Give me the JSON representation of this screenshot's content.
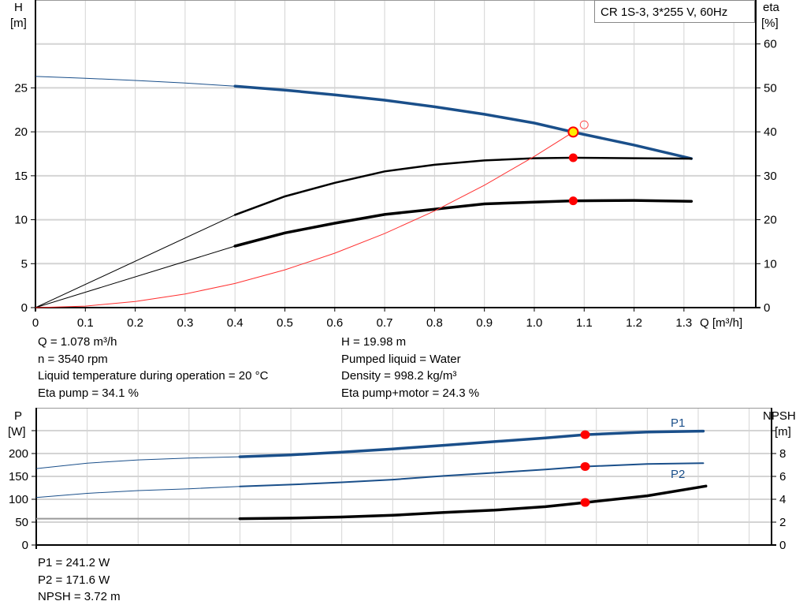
{
  "colors": {
    "head": "#1a4f8a",
    "power": "#1a4f8a",
    "efficiency": "#000000",
    "npsh": "#000000",
    "system": "#ff3030",
    "duty_point": "#ff0000",
    "duty_point_fill": "#ffee00",
    "grid": "#d4d4d4"
  },
  "chart_data": [
    {
      "type": "line",
      "title": "CR 1S-3, 3*255 V, 60Hz",
      "xlabel": "Q [m³/h]",
      "ylabel_left": [
        "H",
        "[m]"
      ],
      "ylabel_right": [
        "eta",
        "[%]"
      ],
      "xlim": [
        0,
        1.444
      ],
      "ylim_left": [
        0,
        35
      ],
      "ylim_right": [
        0,
        70
      ],
      "x_ticks": [
        "0",
        "0.1",
        "0.2",
        "0.3",
        "0.4",
        "0.5",
        "0.6",
        "0.7",
        "0.8",
        "0.9",
        "1.0",
        "1.1",
        "1.2",
        "1.3"
      ],
      "y_ticks_left": [
        "0",
        "5",
        "10",
        "15",
        "20",
        "25"
      ],
      "y_ticks_right": [
        "0",
        "10",
        "20",
        "30",
        "40",
        "50",
        "60"
      ],
      "grid": true,
      "series": [
        {
          "key": "head",
          "axis": "left",
          "color": "#1a4f8a",
          "x": [
            0,
            0.1,
            0.2,
            0.3,
            0.4,
            0.5,
            0.6,
            0.7,
            0.8,
            0.9,
            1.0,
            1.078,
            1.1,
            1.2,
            1.315
          ],
          "y": [
            26.3,
            26.1,
            25.85,
            25.55,
            25.2,
            24.75,
            24.2,
            23.6,
            22.85,
            22.0,
            21.0,
            19.98,
            19.7,
            18.5,
            16.95
          ],
          "thin_until": 0.4
        },
        {
          "key": "eta_pump",
          "axis": "right",
          "color": "#000000",
          "x": [
            0,
            0.4,
            0.5,
            0.6,
            0.7,
            0.8,
            0.9,
            1.0,
            1.078,
            1.2,
            1.315
          ],
          "y": [
            0,
            21.1,
            25.3,
            28.4,
            31.0,
            32.5,
            33.5,
            34.0,
            34.1,
            34.0,
            33.9
          ],
          "thin_until": 0.4
        },
        {
          "key": "eta_total",
          "axis": "right",
          "color": "#000000",
          "x": [
            0,
            0.4,
            0.5,
            0.6,
            0.7,
            0.8,
            0.9,
            1.0,
            1.078,
            1.2,
            1.315
          ],
          "y": [
            0,
            14.0,
            17.0,
            19.2,
            21.2,
            22.4,
            23.6,
            24.0,
            24.3,
            24.4,
            24.2
          ],
          "thin_until": 0.4
        },
        {
          "key": "system",
          "axis": "left",
          "color": "#ff3030",
          "x": [
            0,
            0.1,
            0.2,
            0.3,
            0.4,
            0.5,
            0.6,
            0.7,
            0.8,
            0.9,
            1.0,
            1.078
          ],
          "y": [
            0,
            0.17,
            0.69,
            1.55,
            2.75,
            4.3,
            6.19,
            8.43,
            11.0,
            13.93,
            17.2,
            19.98
          ]
        }
      ],
      "duty_points": [
        {
          "x": 1.078,
          "y": 19.98,
          "axis": "left",
          "style": "yellow"
        },
        {
          "x": 1.078,
          "y": 34.1,
          "axis": "right",
          "style": "red"
        },
        {
          "x": 1.078,
          "y": 24.3,
          "axis": "right",
          "style": "red"
        },
        {
          "x": 1.1,
          "y": 20.8,
          "axis": "left",
          "style": "hollow"
        }
      ]
    },
    {
      "type": "line",
      "xlabel": "",
      "ylabel_left": [
        "P",
        "[W]"
      ],
      "ylabel_right": [
        "NPSH",
        "[m]"
      ],
      "xlim": [
        0,
        1.444
      ],
      "ylim_left": [
        0,
        300
      ],
      "ylim_right": [
        0,
        12
      ],
      "y_ticks_left": [
        "0",
        "50",
        "100",
        "150",
        "200",
        ""
      ],
      "y_ticks_right": [
        "0",
        "2",
        "4",
        "6",
        "8",
        ""
      ],
      "grid": true,
      "series": [
        {
          "key": "P1",
          "name": "P1",
          "axis": "left",
          "color": "#1a4f8a",
          "x": [
            0,
            0.1,
            0.2,
            0.3,
            0.4,
            0.5,
            0.6,
            0.7,
            0.8,
            0.9,
            1.0,
            1.078,
            1.2,
            1.31
          ],
          "y": [
            167,
            179,
            186,
            190,
            193,
            197,
            203,
            210,
            218,
            226,
            234,
            241.2,
            247,
            249
          ],
          "thin_until": 0.4
        },
        {
          "key": "P2",
          "name": "P2",
          "axis": "left",
          "color": "#1a4f8a",
          "x": [
            0,
            0.1,
            0.2,
            0.3,
            0.4,
            0.5,
            0.6,
            0.7,
            0.8,
            0.9,
            1.0,
            1.078,
            1.2,
            1.31
          ],
          "y": [
            104,
            113,
            119,
            123,
            128,
            132,
            137,
            143,
            151,
            158,
            165,
            171.6,
            177,
            179
          ],
          "thin_until": 0.4
        },
        {
          "key": "NPSH",
          "axis": "right",
          "color": "#000000",
          "x": [
            0,
            0.4,
            0.5,
            0.6,
            0.7,
            0.8,
            0.9,
            1.0,
            1.078,
            1.2,
            1.315
          ],
          "y": [
            2.3,
            2.3,
            2.35,
            2.45,
            2.6,
            2.85,
            3.05,
            3.35,
            3.72,
            4.3,
            5.15
          ],
          "thin_until": 0.4
        }
      ],
      "duty_points": [
        {
          "x": 1.078,
          "y": 241.2,
          "axis": "left",
          "style": "red"
        },
        {
          "x": 1.078,
          "y": 171.6,
          "axis": "left",
          "style": "red"
        },
        {
          "x": 1.078,
          "y": 3.72,
          "axis": "right",
          "style": "red"
        }
      ]
    }
  ],
  "info_top": {
    "left": [
      "Q = 1.078 m³/h",
      "n = 3540 rpm",
      "Liquid temperature during operation = 20 °C",
      "Eta pump = 34.1 %"
    ],
    "right": [
      "H = 19.98 m",
      "Pumped liquid = Water",
      "Density = 998.2 kg/m³",
      "Eta pump+motor = 24.3 %"
    ]
  },
  "info_bottom": [
    "P1 = 241.2 W",
    "P2 = 171.6 W",
    "NPSH = 3.72 m"
  ]
}
